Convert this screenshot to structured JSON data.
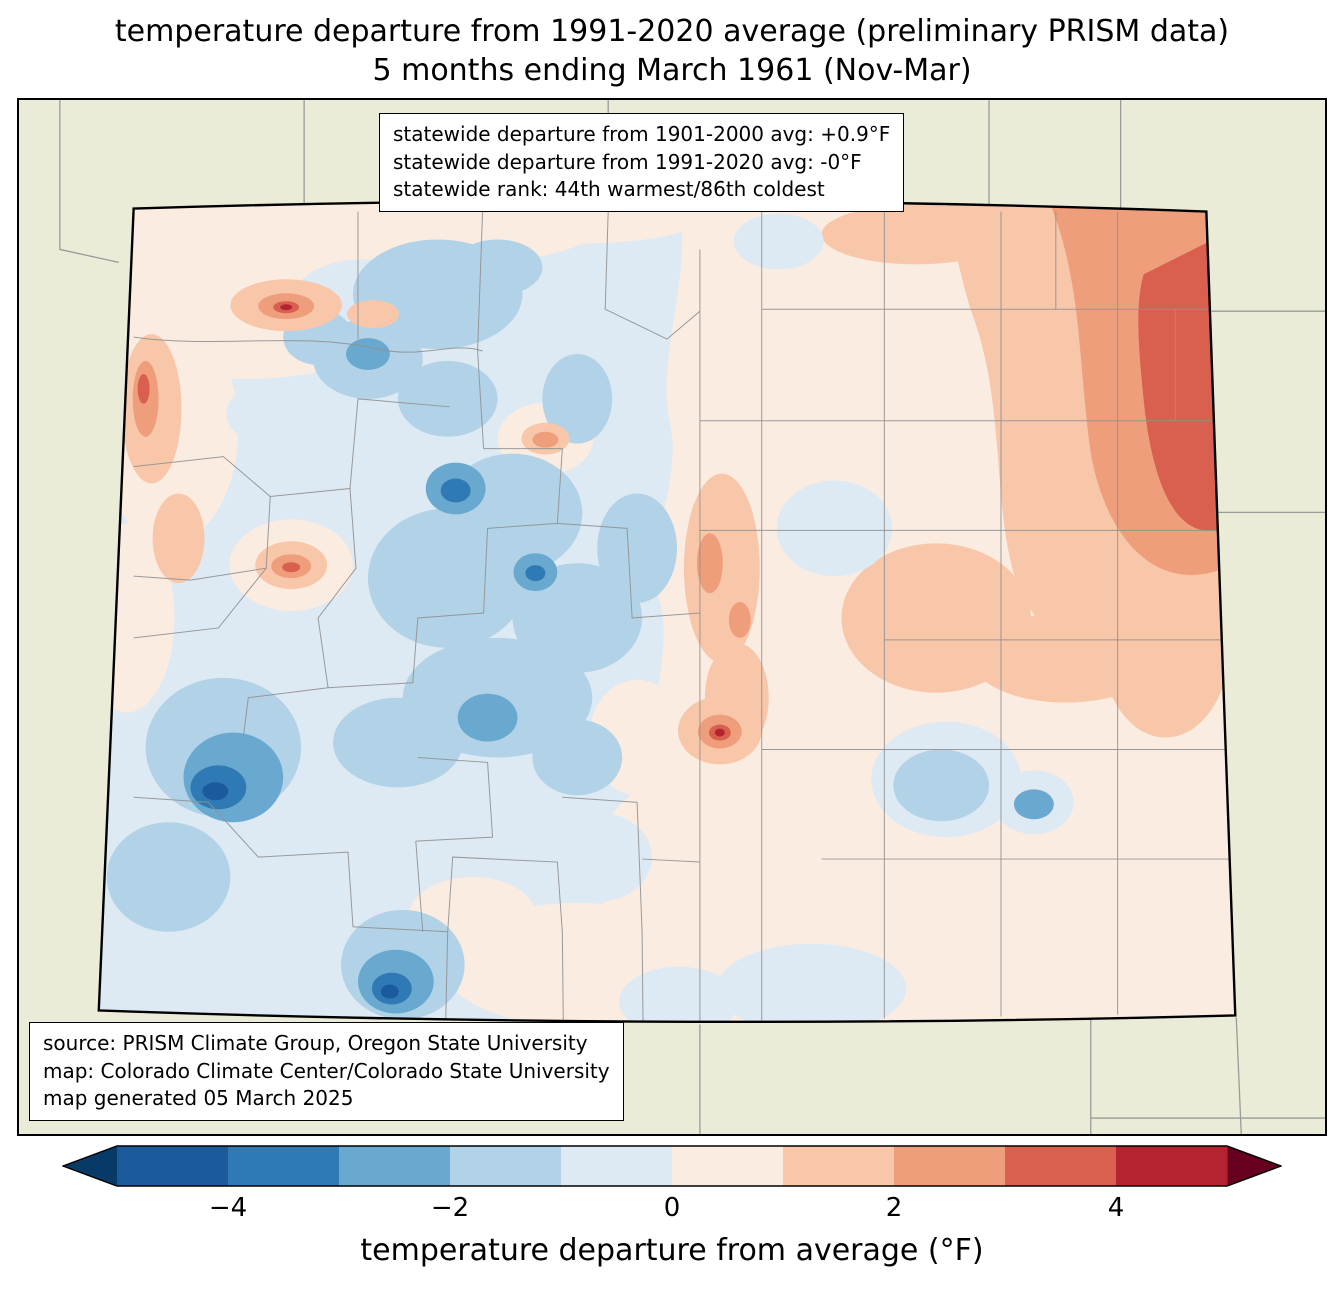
{
  "figure": {
    "title_line1": "temperature departure from 1991-2020 average (preliminary PRISM data)",
    "title_line2": "5 months ending March 1961 (Nov-Mar)"
  },
  "stats_box": {
    "lines": [
      "statewide departure from 1901-2000 avg: +0.9°F",
      "statewide departure from 1991-2020 avg: -0°F",
      "statewide rank: 44th warmest/86th coldest"
    ]
  },
  "source_box": {
    "lines": [
      "source: PRISM Climate Group, Oregon State University",
      "map: Colorado Climate Center/Colorado State University",
      "map generated 05 March 2025"
    ]
  },
  "colorbar": {
    "label": "temperature departure from average (°F)",
    "ticks": [
      "−4",
      "−2",
      "0",
      "2",
      "4"
    ],
    "tick_values": [
      -4,
      -2,
      0,
      2,
      4
    ],
    "range": [
      -5,
      5
    ],
    "segment_colors": [
      "#1c5a9e",
      "#2f79b5",
      "#69a9d0",
      "#b2d3e7",
      "#dde9f3",
      "#fbece2",
      "#f8c7a9",
      "#ef9e7c",
      "#d9604f",
      "#b52330"
    ],
    "under_color": "#083a68",
    "over_color": "#67001f"
  },
  "map": {
    "region": "Colorado",
    "background_color": "#ebecd7",
    "base_color": "#dde9f3",
    "county_line_color": "#909090",
    "state_outline_color": "#000000"
  }
}
